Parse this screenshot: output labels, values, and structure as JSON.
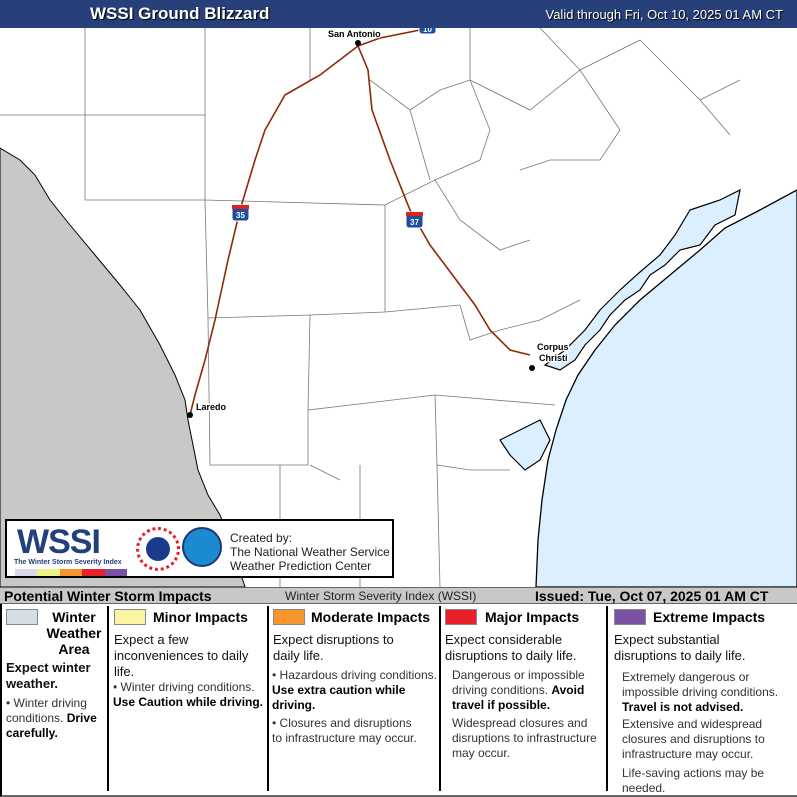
{
  "header": {
    "title": "WSSI Ground Blizzard",
    "valid": "Valid through Fri, Oct 10, 2025 01 AM CT"
  },
  "map": {
    "cities": [
      "San Antonio",
      "Laredo",
      "Corpus",
      "Christi"
    ],
    "highways": [
      "10",
      "35",
      "37"
    ],
    "colors": {
      "land": "#ffffff",
      "mexico": "#c8c8c8",
      "water": "#dcefff",
      "highway": "#8b2a0a"
    }
  },
  "logo": {
    "wordmark": "WSSI",
    "tagline": "The Winter Storm Severity Index",
    "created_by": "Created by:",
    "org1": "The National Weather Service",
    "org2": "Weather Prediction Center"
  },
  "legend_bar": {
    "title": "Potential Winter Storm Impacts",
    "index_name": "Winter Storm Severity Index (WSSI)",
    "issued": "Issued: Tue, Oct 07, 2025 01 AM CT"
  },
  "legend": [
    {
      "title": "Winter Weather Area",
      "color": "#d3dde6",
      "lead": "Expect winter weather.",
      "items": [
        {
          "text": "Winter driving conditions.",
          "bold": "Drive carefully."
        }
      ]
    },
    {
      "title": "Minor Impacts",
      "color": "#faf5a0",
      "lead": "Expect a few inconveniences to daily life.",
      "items": [
        {
          "text": "Winter driving conditions.",
          "bold": "Use Caution while driving."
        }
      ]
    },
    {
      "title": "Moderate Impacts",
      "color": "#f7962e",
      "lead": "Expect disruptions to daily life.",
      "items": [
        {
          "text": "Hazardous driving conditions.",
          "bold": "Use extra caution while driving."
        },
        {
          "text": "Closures and disruptions to infrastructure may occur.",
          "bold": ""
        }
      ]
    },
    {
      "title": "Major Impacts",
      "color": "#e8202a",
      "lead": "Expect considerable disruptions to daily life.",
      "items": [
        {
          "text": "Dangerous or impossible driving conditions.",
          "bold": "Avoid travel if possible."
        },
        {
          "text": "Widespread closures and disruptions to infrastructure may occur.",
          "bold": ""
        }
      ]
    },
    {
      "title": "Extreme Impacts",
      "color": "#7b52a3",
      "lead": "Expect substantial disruptions to daily life.",
      "items": [
        {
          "text": "Extremely dangerous or impossible driving conditions.",
          "bold": "Travel is not advised."
        },
        {
          "text": "Extensive and widespread closures and disruptions to infrastructure may occur.",
          "bold": ""
        },
        {
          "text": "Life-saving actions may be needed.",
          "bold": ""
        }
      ]
    }
  ]
}
